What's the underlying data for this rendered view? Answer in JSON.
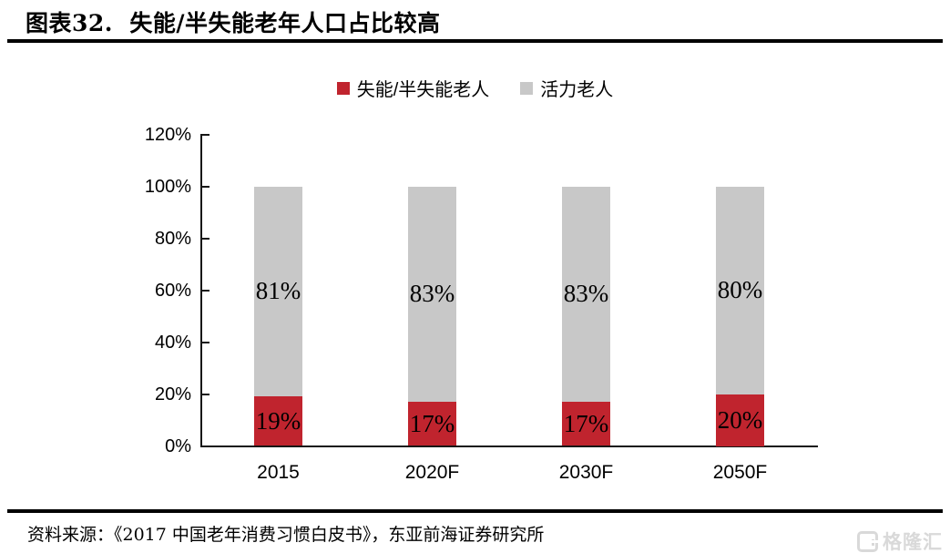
{
  "header": {
    "title": "图表32.  失能/半失能老年人口占比较高"
  },
  "footer": {
    "source": "资料来源：《2017 中国老年消费习惯白皮书》，东亚前海证券研究所",
    "watermark": "格隆汇"
  },
  "chart_data": {
    "type": "bar",
    "stacked": true,
    "title": "失能/半失能老年人口占比较高",
    "categories": [
      "2015",
      "2020F",
      "2030F",
      "2050F"
    ],
    "series": [
      {
        "name": "失能/半失能老人",
        "color": "#C0242E",
        "values": [
          19,
          17,
          17,
          20
        ],
        "labels": [
          "19%",
          "17%",
          "17%",
          "20%"
        ]
      },
      {
        "name": "活力老人",
        "color": "#C8C8C8",
        "values": [
          81,
          83,
          83,
          80
        ],
        "labels": [
          "81%",
          "83%",
          "83%",
          "80%"
        ]
      }
    ],
    "xlabel": "",
    "ylabel": "",
    "ylim": [
      0,
      120
    ],
    "ytick_step": 20,
    "ytick_labels": [
      "0%",
      "20%",
      "40%",
      "60%",
      "80%",
      "100%",
      "120%"
    ],
    "legend_position": "top",
    "grid": false,
    "axis_color": "#161616"
  }
}
